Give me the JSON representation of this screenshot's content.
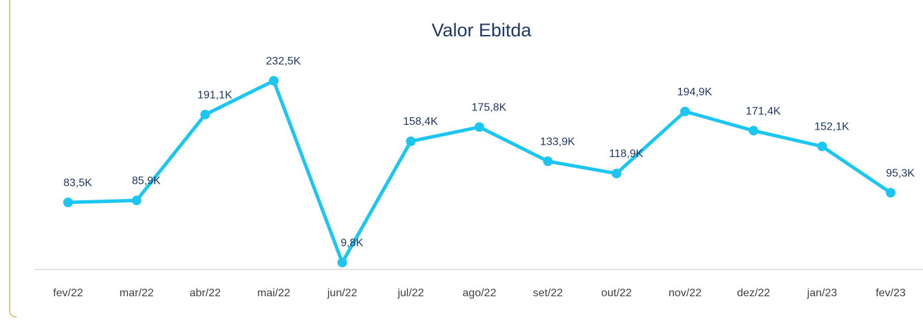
{
  "chart_data": {
    "type": "line",
    "title": "Valor Ebitda",
    "categories": [
      "fev/22",
      "mar/22",
      "abr/22",
      "mai/22",
      "jun/22",
      "jul/22",
      "ago/22",
      "set/22",
      "out/22",
      "nov/22",
      "dez/22",
      "jan/23",
      "fev/23"
    ],
    "series": [
      {
        "color": "#1cc6f0",
        "values": [
          83.5,
          85.9,
          191.1,
          232.5,
          9.8,
          158.4,
          175.8,
          133.9,
          118.9,
          194.9,
          171.4,
          152.1,
          95.3
        ],
        "value_labels": [
          "83,5K",
          "85,9K",
          "191,1K",
          "232,5K",
          "9,8K",
          "158,4K",
          "175,8K",
          "133,9K",
          "118,9K",
          "194,9K",
          "171,4K",
          "152,1K",
          "95,3K"
        ]
      }
    ]
  }
}
